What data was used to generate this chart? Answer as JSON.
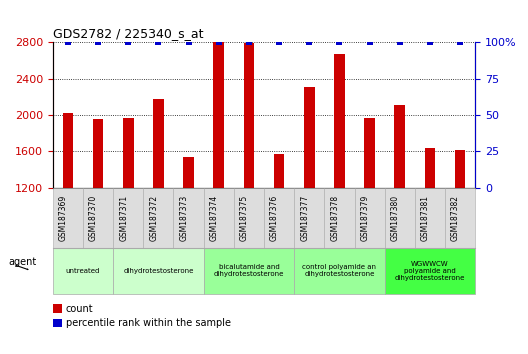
{
  "title": "GDS2782 / 225340_s_at",
  "samples": [
    "GSM187369",
    "GSM187370",
    "GSM187371",
    "GSM187372",
    "GSM187373",
    "GSM187374",
    "GSM187375",
    "GSM187376",
    "GSM187377",
    "GSM187378",
    "GSM187379",
    "GSM187380",
    "GSM187381",
    "GSM187382"
  ],
  "counts": [
    2020,
    1960,
    1970,
    2180,
    1540,
    2800,
    2790,
    1570,
    2310,
    2670,
    1970,
    2110,
    1640,
    1610
  ],
  "percentiles": [
    100,
    100,
    100,
    100,
    100,
    100,
    100,
    100,
    100,
    100,
    100,
    100,
    100,
    100
  ],
  "ylim_left": [
    1200,
    2800
  ],
  "ylim_right": [
    0,
    100
  ],
  "yticks_left": [
    1200,
    1600,
    2000,
    2400,
    2800
  ],
  "yticks_right": [
    0,
    25,
    50,
    75,
    100
  ],
  "bar_color": "#cc0000",
  "dot_color": "#0000cc",
  "bar_width": 0.35,
  "groups": [
    {
      "label": "untreated",
      "start": 0,
      "end": 2,
      "color": "#ccffcc"
    },
    {
      "label": "dihydrotestosterone",
      "start": 2,
      "end": 5,
      "color": "#ccffcc"
    },
    {
      "label": "bicalutamide and\ndihydrotestosterone",
      "start": 5,
      "end": 8,
      "color": "#99ff99"
    },
    {
      "label": "control polyamide an\ndihydrotestosterone",
      "start": 8,
      "end": 11,
      "color": "#99ff99"
    },
    {
      "label": "WGWWCW\npolyamide and\ndihydrotestosterone",
      "start": 11,
      "end": 14,
      "color": "#44ff44"
    }
  ],
  "agent_label": "agent",
  "legend_count_label": "count",
  "legend_pct_label": "percentile rank within the sample",
  "tickbox_color": "#dddddd",
  "tickbox_edge": "#aaaaaa",
  "group_edge": "#aaaaaa"
}
